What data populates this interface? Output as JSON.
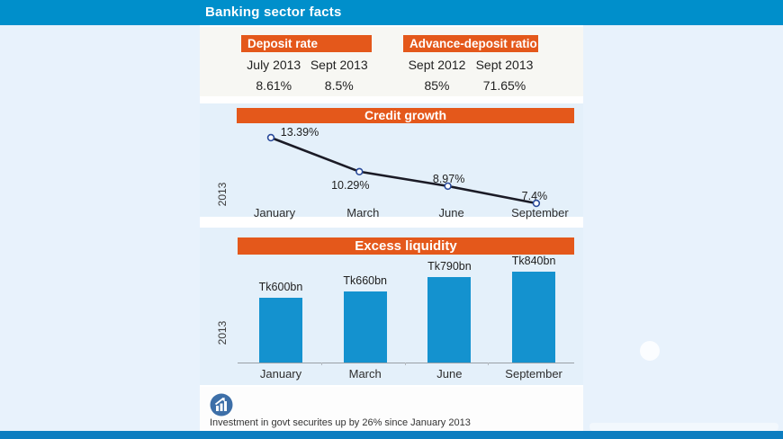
{
  "header": {
    "title": "Banking sector facts"
  },
  "rates": {
    "deposit": {
      "title": "Deposit rate",
      "columns": [
        "July 2013",
        "Sept 2013"
      ],
      "values": [
        "8.61%",
        "8.5%"
      ]
    },
    "advance_deposit": {
      "title": "Advance-deposit ratio",
      "columns": [
        "Sept 2012",
        "Sept 2013"
      ],
      "values": [
        "85%",
        "71.65%"
      ]
    }
  },
  "chart_data": [
    {
      "type": "line",
      "title": "Credit growth",
      "categories": [
        "January",
        "March",
        "June",
        "September"
      ],
      "values": [
        13.39,
        10.29,
        8.97,
        7.4
      ],
      "value_labels": [
        "13.39%",
        "10.29%",
        "8.97%",
        "7.4%"
      ],
      "ylabel": "2013",
      "unit": "%",
      "ylim": [
        7,
        14
      ],
      "grid": false,
      "legend": "none"
    },
    {
      "type": "bar",
      "title": "Excess liquidity",
      "categories": [
        "January",
        "March",
        "June",
        "September"
      ],
      "values": [
        600,
        660,
        790,
        840
      ],
      "value_labels": [
        "Tk600bn",
        "Tk660bn",
        "Tk790bn",
        "Tk840bn"
      ],
      "ylabel": "2013",
      "unit": "Tk bn",
      "ylim": [
        0,
        900
      ],
      "grid": false,
      "legend": "none"
    }
  ],
  "footer": {
    "note": "Investment in govt securites up by 26% since January 2013",
    "icon": "bar-chart-up-arrow-icon"
  },
  "colors": {
    "accent_orange": "#E4581B",
    "masthead_blue": "#008FCB",
    "bar_blue": "#1492CF",
    "panel_blue": "#E4F0FA",
    "table_bg": "#F7F7F3",
    "bottom_bar_blue": "#0C7DC0",
    "line_black": "#1B1B26",
    "marker_blue": "#2A4B9B"
  }
}
